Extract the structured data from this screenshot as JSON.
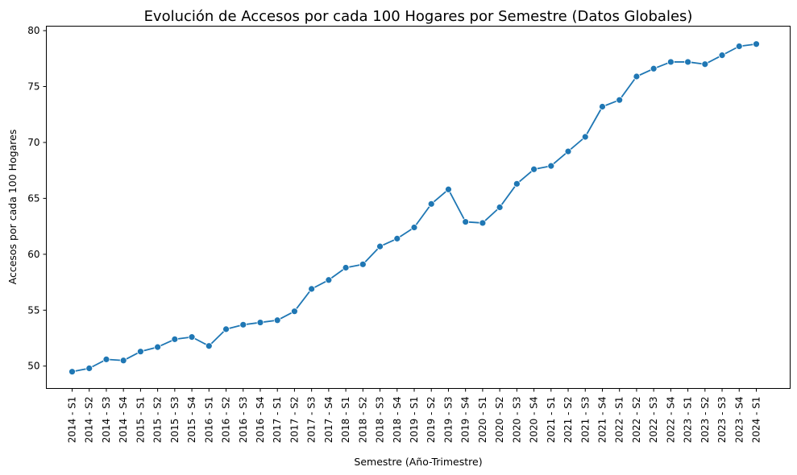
{
  "chart_data": {
    "type": "line",
    "title": "Evolución de Accesos por cada 100 Hogares por Semestre (Datos Globales)",
    "xlabel": "Semestre (Año-Trimestre)",
    "ylabel": "Accesos por cada 100 Hogares",
    "ylim": [
      48.0,
      80.4
    ],
    "yticks": [
      50,
      55,
      60,
      65,
      70,
      75,
      80
    ],
    "grid": false,
    "marker": "circle",
    "color": "#1f77b4",
    "categories": [
      "2014 - S1",
      "2014 - S2",
      "2014 - S3",
      "2014 - S4",
      "2015 - S1",
      "2015 - S2",
      "2015 - S3",
      "2015 - S4",
      "2016 - S1",
      "2016 - S2",
      "2016 - S3",
      "2016 - S4",
      "2017 - S1",
      "2017 - S2",
      "2017 - S3",
      "2017 - S4",
      "2018 - S1",
      "2018 - S2",
      "2018 - S3",
      "2018 - S4",
      "2019 - S1",
      "2019 - S2",
      "2019 - S3",
      "2019 - S4",
      "2020 - S1",
      "2020 - S2",
      "2020 - S3",
      "2020 - S4",
      "2021 - S1",
      "2021 - S2",
      "2021 - S3",
      "2021 - S4",
      "2022 - S1",
      "2022 - S2",
      "2022 - S3",
      "2022 - S4",
      "2023 - S1",
      "2023 - S2",
      "2023 - S3",
      "2023 - S4",
      "2024 - S1"
    ],
    "values": [
      49.5,
      49.8,
      50.6,
      50.5,
      51.3,
      51.7,
      52.4,
      52.6,
      51.8,
      53.3,
      53.7,
      53.9,
      54.1,
      54.9,
      56.9,
      57.7,
      58.8,
      59.1,
      60.7,
      61.4,
      62.4,
      64.5,
      65.8,
      62.9,
      62.8,
      64.2,
      66.3,
      67.6,
      67.9,
      69.2,
      70.5,
      73.2,
      73.8,
      75.9,
      76.6,
      77.2,
      77.2,
      77.0,
      77.8,
      78.6,
      78.8
    ]
  }
}
